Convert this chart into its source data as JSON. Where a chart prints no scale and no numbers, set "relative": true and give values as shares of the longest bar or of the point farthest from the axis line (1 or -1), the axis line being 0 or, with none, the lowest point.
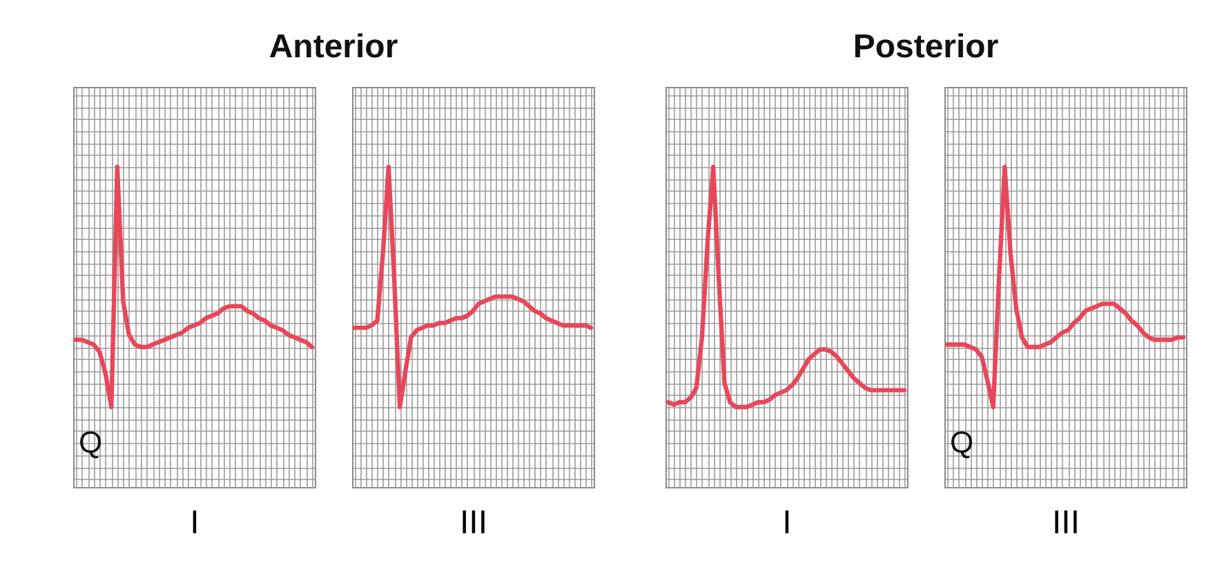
{
  "chart_data": [
    {
      "type": "line",
      "title": "Anterior",
      "xlabel": "I",
      "relative": true,
      "grid": true,
      "color": "#e8475b",
      "annotations": [
        "Q"
      ],
      "categories": [
        null,
        null,
        null,
        null,
        null,
        null,
        null,
        null,
        null,
        null,
        null,
        null,
        null,
        null,
        null,
        null,
        null,
        null,
        null,
        null,
        null,
        null,
        null,
        null,
        null,
        null,
        null,
        null,
        null,
        null,
        null,
        null,
        null,
        null,
        null,
        null,
        null,
        null,
        null,
        null,
        null
      ],
      "values": [
        0.28,
        0.28,
        0.27,
        0.26,
        0.23,
        0.14,
        0,
        1,
        0.44,
        0.3,
        0.26,
        0.25,
        0.25,
        0.26,
        0.27,
        0.28,
        0.29,
        0.3,
        0.31,
        0.33,
        0.34,
        0.35,
        0.37,
        0.38,
        0.39,
        0.41,
        0.42,
        0.42,
        0.42,
        0.4,
        0.39,
        0.37,
        0.36,
        0.34,
        0.33,
        0.32,
        0.3,
        0.29,
        0.28,
        0.27,
        0.25
      ]
    },
    {
      "type": "line",
      "xlabel": "III",
      "relative": true,
      "grid": true,
      "color": "#e8475b",
      "categories": [
        null,
        null,
        null,
        null,
        null,
        null,
        null,
        null,
        null,
        null,
        null,
        null,
        null,
        null,
        null,
        null,
        null,
        null,
        null,
        null,
        null,
        null,
        null,
        null,
        null,
        null,
        null,
        null,
        null,
        null,
        null,
        null,
        null,
        null,
        null,
        null,
        null,
        null,
        null,
        null,
        null,
        null,
        null
      ],
      "values": [
        0.33,
        0.33,
        0.33,
        0.34,
        0.36,
        0.64,
        1,
        0.54,
        0,
        0.15,
        0.29,
        0.32,
        0.33,
        0.34,
        0.34,
        0.35,
        0.35,
        0.36,
        0.37,
        0.37,
        0.38,
        0.4,
        0.43,
        0.44,
        0.45,
        0.46,
        0.46,
        0.46,
        0.46,
        0.45,
        0.44,
        0.42,
        0.4,
        0.39,
        0.37,
        0.36,
        0.35,
        0.34,
        0.34,
        0.34,
        0.34,
        0.34,
        0.33
      ]
    },
    {
      "type": "line",
      "title": "Posterior",
      "xlabel": "I",
      "relative": true,
      "grid": true,
      "color": "#e8475b",
      "categories": [
        null,
        null,
        null,
        null,
        null,
        null,
        null,
        null,
        null,
        null,
        null,
        null,
        null,
        null,
        null,
        null,
        null,
        null,
        null,
        null,
        null,
        null,
        null,
        null,
        null,
        null,
        null,
        null,
        null,
        null,
        null,
        null,
        null,
        null,
        null,
        null,
        null,
        null,
        null,
        null,
        null,
        null,
        null
      ],
      "values": [
        0.02,
        0.01,
        0.02,
        0.02,
        0.04,
        0.08,
        0.29,
        0.69,
        1,
        0.53,
        0.1,
        0.02,
        0,
        0,
        0,
        0.01,
        0.02,
        0.02,
        0.03,
        0.05,
        0.06,
        0.07,
        0.09,
        0.12,
        0.16,
        0.2,
        0.22,
        0.24,
        0.24,
        0.23,
        0.21,
        0.18,
        0.15,
        0.12,
        0.1,
        0.08,
        0.07,
        0.07,
        0.07,
        0.07,
        0.07,
        0.07,
        0.07
      ]
    },
    {
      "type": "line",
      "xlabel": "III",
      "relative": true,
      "grid": true,
      "color": "#e8475b",
      "annotations": [
        "Q"
      ],
      "categories": [
        null,
        null,
        null,
        null,
        null,
        null,
        null,
        null,
        null,
        null,
        null,
        null,
        null,
        null,
        null,
        null,
        null,
        null,
        null,
        null,
        null,
        null,
        null,
        null,
        null,
        null,
        null,
        null,
        null,
        null,
        null,
        null,
        null,
        null,
        null,
        null,
        null,
        null,
        null,
        null,
        null,
        null
      ],
      "values": [
        0.26,
        0.26,
        0.26,
        0.26,
        0.25,
        0.24,
        0.21,
        0.11,
        0,
        0.53,
        1,
        0.64,
        0.41,
        0.29,
        0.25,
        0.25,
        0.25,
        0.26,
        0.27,
        0.29,
        0.31,
        0.32,
        0.35,
        0.37,
        0.4,
        0.41,
        0.42,
        0.43,
        0.43,
        0.43,
        0.41,
        0.39,
        0.36,
        0.34,
        0.31,
        0.29,
        0.28,
        0.28,
        0.28,
        0.28,
        0.29,
        0.29
      ]
    }
  ]
}
